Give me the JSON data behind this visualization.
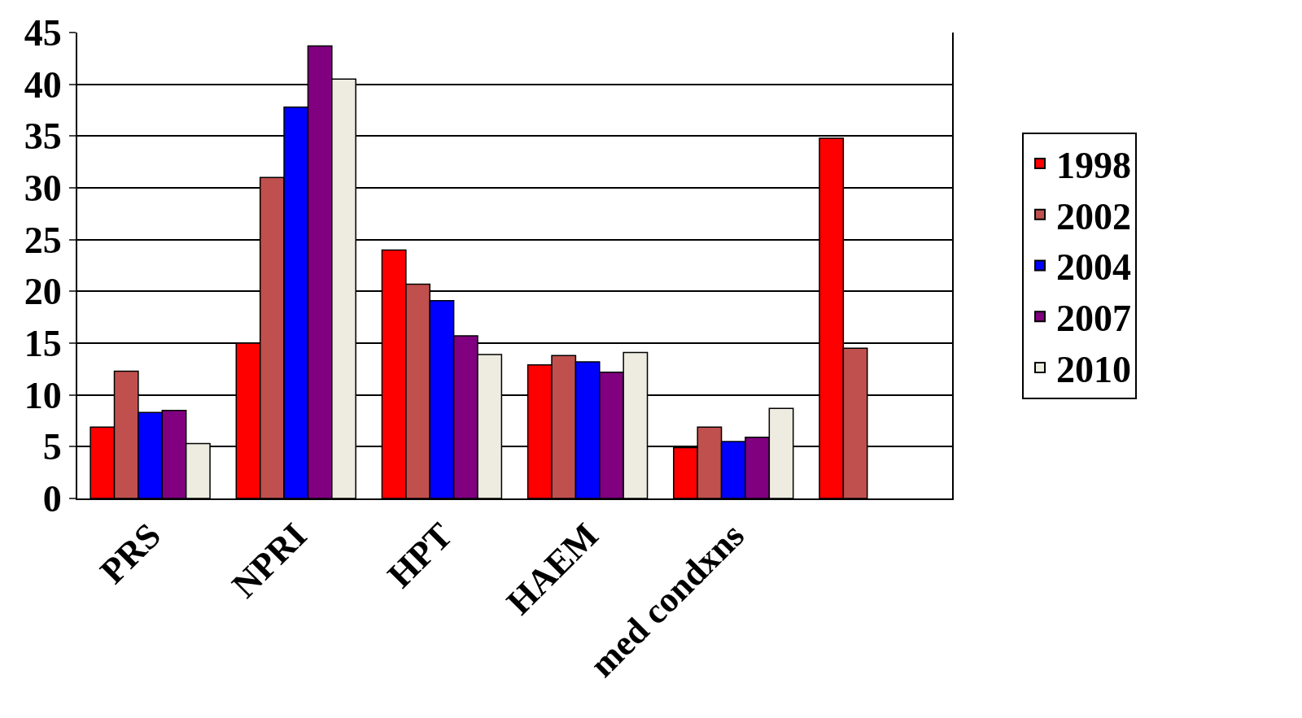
{
  "chart_data": {
    "type": "bar",
    "categories": [
      "PRS",
      "NPRI",
      "HPT",
      "HAEM",
      "med condxns",
      null
    ],
    "series": [
      {
        "name": "1998",
        "color": "#ff0000",
        "values": [
          6.9,
          15,
          24,
          12.9,
          4.9,
          34.8
        ]
      },
      {
        "name": "2002",
        "color": "#c0504d",
        "values": [
          12.3,
          31,
          20.7,
          13.8,
          6.9,
          14.5
        ]
      },
      {
        "name": "2004",
        "color": "#0000ff",
        "values": [
          8.3,
          37.8,
          19.1,
          13.2,
          5.5,
          null
        ]
      },
      {
        "name": "2007",
        "color": "#800080",
        "values": [
          8.5,
          43.7,
          15.7,
          12.2,
          5.9,
          null
        ]
      },
      {
        "name": "2010",
        "color": "#eeece1",
        "values": [
          5.3,
          40.5,
          13.9,
          14.1,
          8.7,
          null
        ]
      }
    ],
    "ylim": [
      0,
      45
    ],
    "yticks": [
      0,
      5,
      10,
      15,
      20,
      25,
      30,
      35,
      40,
      45
    ],
    "grid": "y",
    "legend": "right"
  }
}
